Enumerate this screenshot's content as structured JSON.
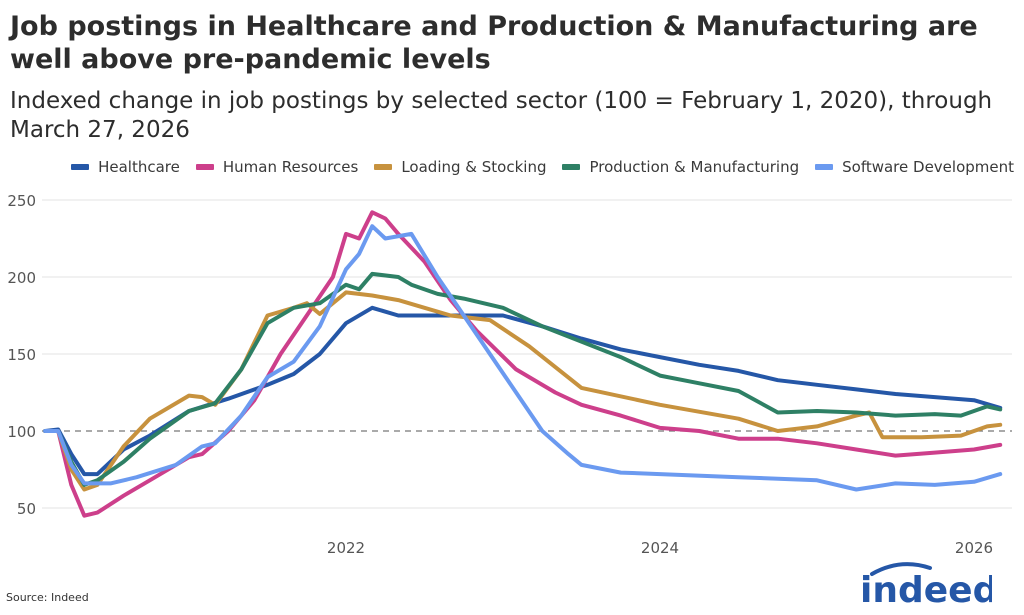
{
  "header": {
    "title": "Job postings in Healthcare and Production & Manufacturing are well above pre-pandemic levels",
    "subtitle": "Indexed change in job postings by selected sector (100 = February 1, 2020), through March 27, 2026"
  },
  "footer": {
    "source": "Source: Indeed",
    "logo": "indeed"
  },
  "chart_data": {
    "type": "line",
    "title": "Job postings in Healthcare and Production & Manufacturing are well above pre-pandemic levels",
    "subtitle": "Indexed change in job postings by selected sector (100 = February 1, 2020), through March 27, 2026",
    "xlabel": "",
    "ylabel": "",
    "xlim": [
      "2020-02",
      "2026-03"
    ],
    "ylim": [
      40,
      255
    ],
    "x_ticks": [
      "2022",
      "2024",
      "2026"
    ],
    "y_ticks": [
      50,
      100,
      150,
      200,
      250
    ],
    "reference_line": 100,
    "grid": "horizontal",
    "legend_position": "top-right",
    "series": [
      {
        "name": "Healthcare",
        "color": "#2557a7",
        "points": [
          [
            "2020-02",
            100
          ],
          [
            "2020-03",
            101
          ],
          [
            "2020-04",
            85
          ],
          [
            "2020-05",
            72
          ],
          [
            "2020-06",
            72
          ],
          [
            "2020-08",
            88
          ],
          [
            "2020-10",
            97
          ],
          [
            "2021-01",
            113
          ],
          [
            "2021-04",
            121
          ],
          [
            "2021-07",
            130
          ],
          [
            "2021-09",
            137
          ],
          [
            "2021-11",
            150
          ],
          [
            "2022-01",
            170
          ],
          [
            "2022-03",
            180
          ],
          [
            "2022-05",
            175
          ],
          [
            "2022-07",
            175
          ],
          [
            "2022-10",
            175
          ],
          [
            "2023-01",
            175
          ],
          [
            "2023-04",
            168
          ],
          [
            "2023-07",
            160
          ],
          [
            "2023-10",
            153
          ],
          [
            "2024-01",
            148
          ],
          [
            "2024-04",
            143
          ],
          [
            "2024-07",
            139
          ],
          [
            "2024-10",
            133
          ],
          [
            "2025-01",
            130
          ],
          [
            "2025-04",
            127
          ],
          [
            "2025-07",
            124
          ],
          [
            "2025-10",
            122
          ],
          [
            "2026-01",
            120
          ],
          [
            "2026-03",
            115
          ]
        ]
      },
      {
        "name": "Human Resources",
        "color": "#cd3f8b",
        "points": [
          [
            "2020-02",
            100
          ],
          [
            "2020-03",
            100
          ],
          [
            "2020-04",
            65
          ],
          [
            "2020-05",
            45
          ],
          [
            "2020-06",
            47
          ],
          [
            "2020-08",
            58
          ],
          [
            "2020-10",
            68
          ],
          [
            "2021-01",
            83
          ],
          [
            "2021-02",
            85
          ],
          [
            "2021-04",
            100
          ],
          [
            "2021-06",
            120
          ],
          [
            "2021-08",
            150
          ],
          [
            "2021-10",
            175
          ],
          [
            "2021-12",
            200
          ],
          [
            "2022-01",
            228
          ],
          [
            "2022-02",
            225
          ],
          [
            "2022-03",
            242
          ],
          [
            "2022-04",
            238
          ],
          [
            "2022-05",
            228
          ],
          [
            "2022-07",
            210
          ],
          [
            "2022-09",
            185
          ],
          [
            "2022-11",
            165
          ],
          [
            "2023-02",
            140
          ],
          [
            "2023-05",
            125
          ],
          [
            "2023-07",
            117
          ],
          [
            "2023-10",
            110
          ],
          [
            "2024-01",
            102
          ],
          [
            "2024-04",
            100
          ],
          [
            "2024-07",
            95
          ],
          [
            "2024-10",
            95
          ],
          [
            "2025-01",
            92
          ],
          [
            "2025-04",
            88
          ],
          [
            "2025-07",
            84
          ],
          [
            "2025-10",
            86
          ],
          [
            "2026-01",
            88
          ],
          [
            "2026-03",
            91
          ]
        ]
      },
      {
        "name": "Loading & Stocking",
        "color": "#c7923e",
        "points": [
          [
            "2020-02",
            100
          ],
          [
            "2020-03",
            100
          ],
          [
            "2020-04",
            75
          ],
          [
            "2020-05",
            62
          ],
          [
            "2020-06",
            65
          ],
          [
            "2020-08",
            90
          ],
          [
            "2020-10",
            108
          ],
          [
            "2021-01",
            123
          ],
          [
            "2021-02",
            122
          ],
          [
            "2021-03",
            117
          ],
          [
            "2021-05",
            140
          ],
          [
            "2021-07",
            175
          ],
          [
            "2021-09",
            180
          ],
          [
            "2021-10",
            183
          ],
          [
            "2021-11",
            176
          ],
          [
            "2022-01",
            190
          ],
          [
            "2022-03",
            188
          ],
          [
            "2022-05",
            185
          ],
          [
            "2022-07",
            180
          ],
          [
            "2022-09",
            175
          ],
          [
            "2022-12",
            172
          ],
          [
            "2023-03",
            155
          ],
          [
            "2023-07",
            128
          ],
          [
            "2024-01",
            117
          ],
          [
            "2024-07",
            108
          ],
          [
            "2024-10",
            100
          ],
          [
            "2025-01",
            103
          ],
          [
            "2025-04",
            110
          ],
          [
            "2025-05",
            112
          ],
          [
            "2025-06",
            96
          ],
          [
            "2025-09",
            96
          ],
          [
            "2025-12",
            97
          ],
          [
            "2026-02",
            103
          ],
          [
            "2026-03",
            104
          ]
        ]
      },
      {
        "name": "Production & Manufacturing",
        "color": "#2e8065",
        "points": [
          [
            "2020-02",
            100
          ],
          [
            "2020-03",
            100
          ],
          [
            "2020-04",
            80
          ],
          [
            "2020-05",
            65
          ],
          [
            "2020-06",
            68
          ],
          [
            "2020-08",
            80
          ],
          [
            "2020-10",
            95
          ],
          [
            "2021-01",
            113
          ],
          [
            "2021-03",
            118
          ],
          [
            "2021-05",
            140
          ],
          [
            "2021-07",
            170
          ],
          [
            "2021-09",
            180
          ],
          [
            "2021-11",
            183
          ],
          [
            "2022-01",
            195
          ],
          [
            "2022-02",
            192
          ],
          [
            "2022-03",
            202
          ],
          [
            "2022-05",
            200
          ],
          [
            "2022-06",
            195
          ],
          [
            "2022-08",
            189
          ],
          [
            "2022-10",
            186
          ],
          [
            "2023-01",
            180
          ],
          [
            "2023-04",
            168
          ],
          [
            "2023-07",
            158
          ],
          [
            "2023-10",
            148
          ],
          [
            "2024-01",
            136
          ],
          [
            "2024-04",
            131
          ],
          [
            "2024-07",
            126
          ],
          [
            "2024-10",
            112
          ],
          [
            "2025-01",
            113
          ],
          [
            "2025-04",
            112
          ],
          [
            "2025-07",
            110
          ],
          [
            "2025-10",
            111
          ],
          [
            "2025-12",
            110
          ],
          [
            "2026-02",
            116
          ],
          [
            "2026-03",
            114
          ]
        ]
      },
      {
        "name": "Software Development",
        "color": "#6b9af0",
        "points": [
          [
            "2020-02",
            100
          ],
          [
            "2020-03",
            100
          ],
          [
            "2020-04",
            78
          ],
          [
            "2020-05",
            66
          ],
          [
            "2020-07",
            66
          ],
          [
            "2020-09",
            70
          ],
          [
            "2020-12",
            78
          ],
          [
            "2021-02",
            90
          ],
          [
            "2021-03",
            92
          ],
          [
            "2021-05",
            110
          ],
          [
            "2021-07",
            135
          ],
          [
            "2021-09",
            145
          ],
          [
            "2021-11",
            168
          ],
          [
            "2022-01",
            205
          ],
          [
            "2022-02",
            215
          ],
          [
            "2022-03",
            233
          ],
          [
            "2022-04",
            225
          ],
          [
            "2022-06",
            228
          ],
          [
            "2022-08",
            200
          ],
          [
            "2022-10",
            175
          ],
          [
            "2022-12",
            150
          ],
          [
            "2023-02",
            125
          ],
          [
            "2023-04",
            100
          ],
          [
            "2023-06",
            85
          ],
          [
            "2023-07",
            78
          ],
          [
            "2023-10",
            73
          ],
          [
            "2024-01",
            72
          ],
          [
            "2024-07",
            70
          ],
          [
            "2025-01",
            68
          ],
          [
            "2025-04",
            62
          ],
          [
            "2025-07",
            66
          ],
          [
            "2025-10",
            65
          ],
          [
            "2026-01",
            67
          ],
          [
            "2026-03",
            72
          ]
        ]
      }
    ]
  }
}
